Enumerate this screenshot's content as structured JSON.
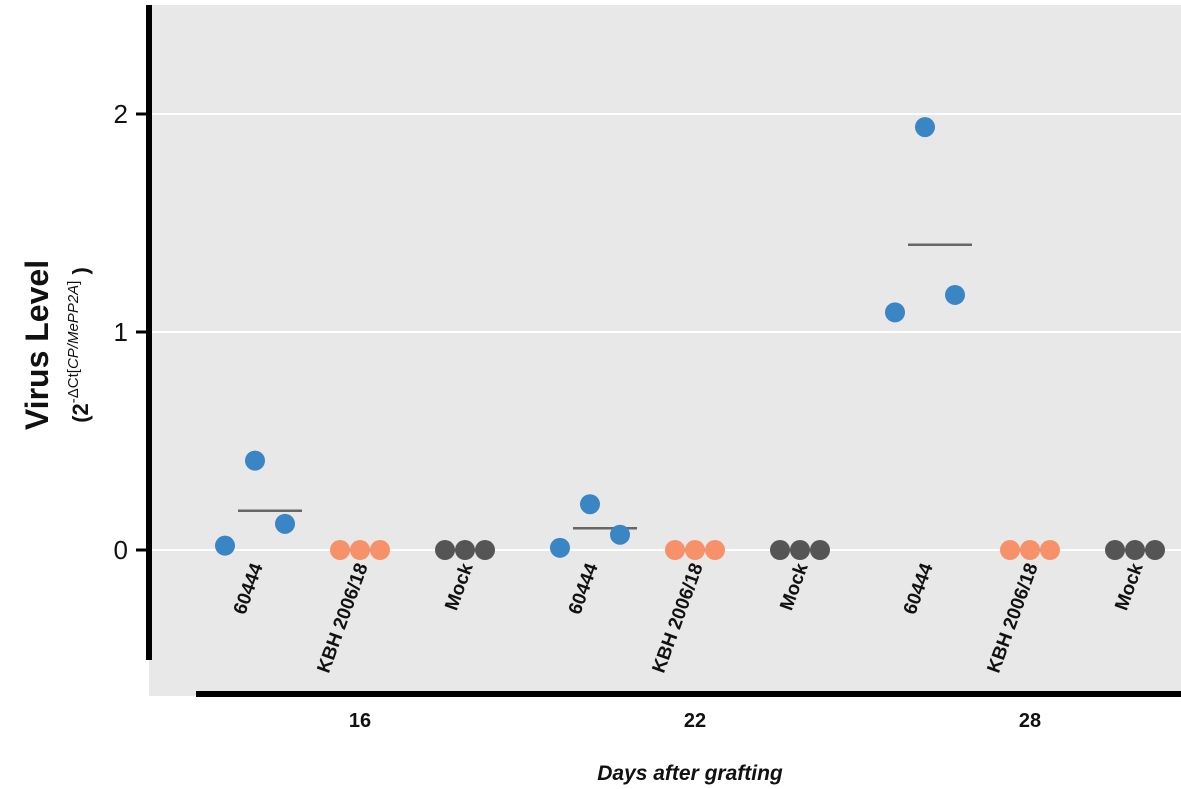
{
  "chart_data": {
    "type": "scatter",
    "title": "",
    "ylabel": "Virus Level",
    "ylabel_expression": {
      "open": "(",
      "base": "2",
      "sup_prefix": "-ΔCt[",
      "sup_italic": "CP/MePP2A",
      "sup_suffix": "]",
      "close": " )"
    },
    "xlabel": "Days after grafting",
    "ylim": [
      -0.5,
      2.45
    ],
    "yticks": [
      0,
      1,
      2
    ],
    "grid": true,
    "groups": [
      {
        "day": "16",
        "categories": [
          {
            "name": "60444",
            "color": "#3a85c4",
            "values": [
              0.02,
              0.12,
              0.41
            ],
            "mean": 0.18
          },
          {
            "name": "KBH 2006/18",
            "color": "#f7916a",
            "values": [
              0.0,
              0.0,
              0.0
            ],
            "mean": 0.0
          },
          {
            "name": "Mock",
            "color": "#555555",
            "values": [
              0.0,
              0.0,
              0.0
            ],
            "mean": 0.0
          }
        ]
      },
      {
        "day": "22",
        "categories": [
          {
            "name": "60444",
            "color": "#3a85c4",
            "values": [
              0.01,
              0.07,
              0.21
            ],
            "mean": 0.1
          },
          {
            "name": "KBH 2006/18",
            "color": "#f7916a",
            "values": [
              0.0,
              0.0,
              0.0
            ],
            "mean": 0.0
          },
          {
            "name": "Mock",
            "color": "#555555",
            "values": [
              0.0,
              0.0,
              0.0
            ],
            "mean": 0.0
          }
        ]
      },
      {
        "day": "28",
        "categories": [
          {
            "name": "60444",
            "color": "#3a85c4",
            "values": [
              1.09,
              1.17,
              1.94
            ],
            "mean": 1.4
          },
          {
            "name": "KBH 2006/18",
            "color": "#f7916a",
            "values": [
              0.0,
              0.0,
              0.0
            ],
            "mean": 0.0
          },
          {
            "name": "Mock",
            "color": "#555555",
            "values": [
              0.0,
              0.0,
              0.0
            ],
            "mean": 0.0
          }
        ]
      }
    ],
    "colors": {
      "panel_background": "#e8e8e8",
      "grid": "#ffffff",
      "mean_line": "#666666",
      "axis": "#000000"
    }
  }
}
